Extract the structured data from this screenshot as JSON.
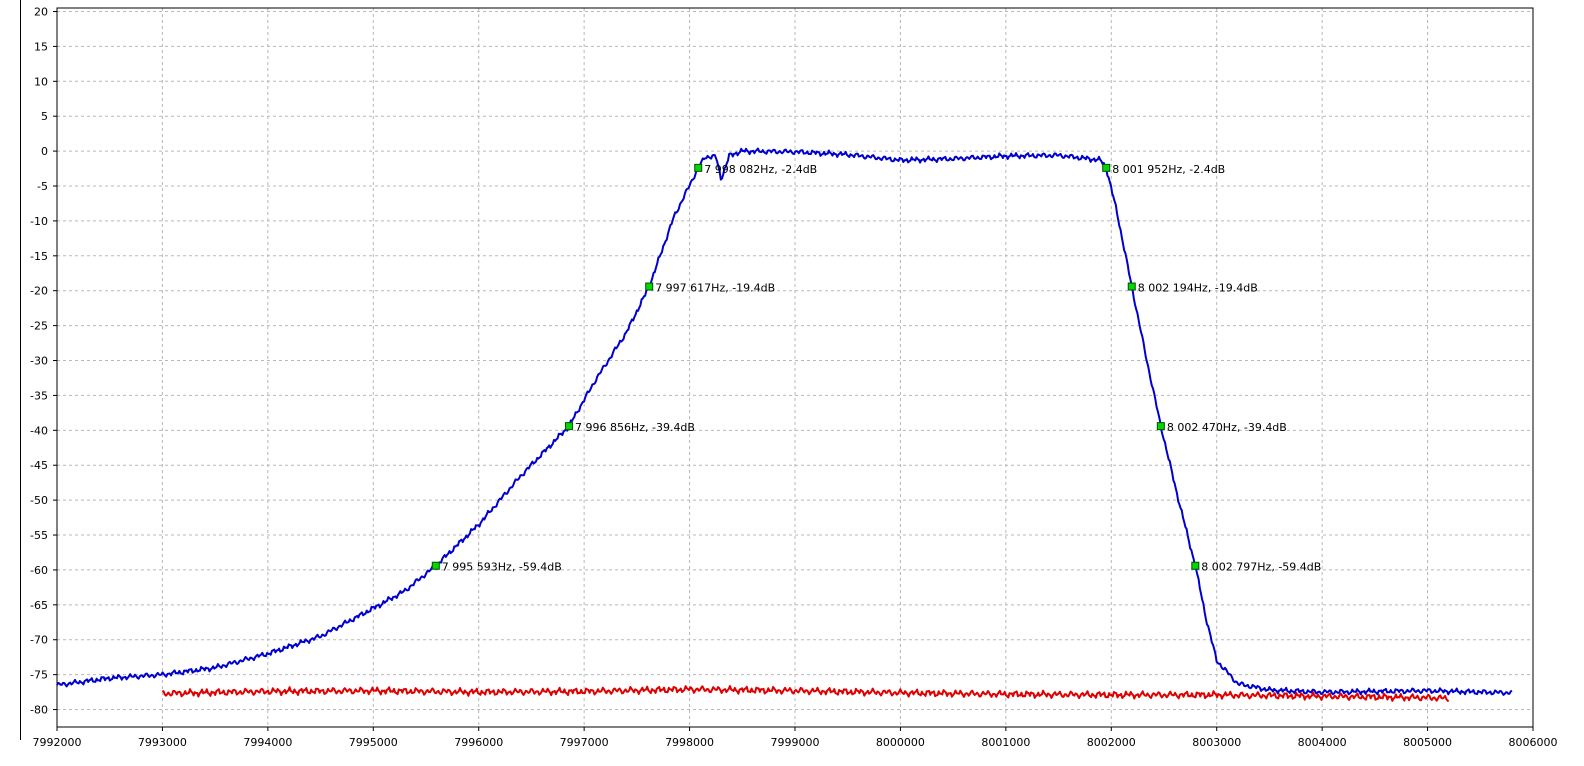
{
  "colors": {
    "response_trace": "#0000d0",
    "noise_floor_trace": "#e00000",
    "marker_fill": "#00d800",
    "marker_stroke": "#005000",
    "grid": "#b8b8b8"
  },
  "chart_data": {
    "type": "line",
    "title": "",
    "xlabel": "",
    "ylabel": "",
    "xlim": [
      7992000,
      8006000
    ],
    "ylim": [
      -82.5,
      20.5
    ],
    "grid": true,
    "legend": "none",
    "x_ticks": [
      7992000,
      7993000,
      7994000,
      7995000,
      7996000,
      7997000,
      7998000,
      7999000,
      8000000,
      8001000,
      8002000,
      8003000,
      8004000,
      8005000,
      8006000
    ],
    "x_tick_labels": [
      "7992000",
      "7993000",
      "7994000",
      "7995000",
      "7996000",
      "7997000",
      "7998000",
      "7999000",
      "8000000",
      "8001000",
      "8002000",
      "8003000",
      "8004000",
      "8005000",
      "8006000"
    ],
    "y_ticks": [
      20,
      15,
      10,
      5,
      0,
      -5,
      -10,
      -15,
      -20,
      -25,
      -30,
      -35,
      -40,
      -45,
      -50,
      -55,
      -60,
      -65,
      -70,
      -75,
      -80
    ],
    "y_tick_labels": [
      "20",
      "15",
      "10",
      "5",
      "0",
      "-5",
      "-10",
      "-15",
      "-20",
      "-25",
      "-30",
      "-35",
      "-40",
      "-45",
      "-50",
      "-55",
      "-60",
      "-65",
      "-70",
      "-75",
      "-80"
    ],
    "series": [
      {
        "color": "#0000d0",
        "x": [
          7992000,
          7992500,
          7993000,
          7993500,
          7994000,
          7994500,
          7995000,
          7995300,
          7995593,
          7996000,
          7996400,
          7996856,
          7997100,
          7997400,
          7997617,
          7997850,
          7998082,
          7998150,
          7998250,
          7998300,
          7998380,
          7998500,
          7999000,
          7999500,
          8000000,
          8000500,
          8001000,
          8001500,
          8001900,
          8001952,
          8002050,
          8002194,
          8002330,
          8002470,
          8002630,
          8002797,
          8002900,
          8003000,
          8003200,
          8003500,
          8004000,
          8004500,
          8005000,
          8005500,
          8005800
        ],
        "y": [
          -76.5,
          -75.5,
          -75,
          -74,
          -72,
          -69.5,
          -65.5,
          -63,
          -59.4,
          -53.5,
          -46.5,
          -39.4,
          -33,
          -26,
          -19.4,
          -9.5,
          -2.4,
          -0.8,
          -0.8,
          -4,
          -0.6,
          0,
          -0.1,
          -0.5,
          -1.3,
          -1.1,
          -0.7,
          -0.6,
          -1.3,
          -2.4,
          -8.5,
          -19.4,
          -29.5,
          -39.4,
          -49.5,
          -59.4,
          -67,
          -73,
          -76.3,
          -77.2,
          -77.5,
          -77.4,
          -77.3,
          -77.5,
          -77.6
        ]
      },
      {
        "color": "#e00000",
        "x": [
          7993000,
          7994000,
          7995000,
          7996000,
          7997000,
          7998000,
          7999000,
          8000000,
          8001000,
          8002000,
          8003000,
          8004000,
          8005000,
          8005200
        ],
        "y": [
          -77.7,
          -77.4,
          -77.3,
          -77.5,
          -77.4,
          -77.1,
          -77.3,
          -77.6,
          -77.8,
          -77.9,
          -77.9,
          -78.1,
          -78.3,
          -78.4
        ]
      }
    ],
    "markers": [
      {
        "x": 7995593,
        "y": -59.4,
        "label": "7 995 593Hz, -59.4dB"
      },
      {
        "x": 7996856,
        "y": -39.4,
        "label": "7 996 856Hz, -39.4dB"
      },
      {
        "x": 7997617,
        "y": -19.4,
        "label": "7 997 617Hz, -19.4dB"
      },
      {
        "x": 7998082,
        "y": -2.4,
        "label": "7 998 082Hz, -2.4dB"
      },
      {
        "x": 8001952,
        "y": -2.4,
        "label": "8 001 952Hz, -2.4dB"
      },
      {
        "x": 8002194,
        "y": -19.4,
        "label": "8 002 194Hz, -19.4dB"
      },
      {
        "x": 8002470,
        "y": -39.4,
        "label": "8 002 470Hz, -39.4dB"
      },
      {
        "x": 8002797,
        "y": -59.4,
        "label": "8 002 797Hz, -59.4dB"
      }
    ]
  }
}
